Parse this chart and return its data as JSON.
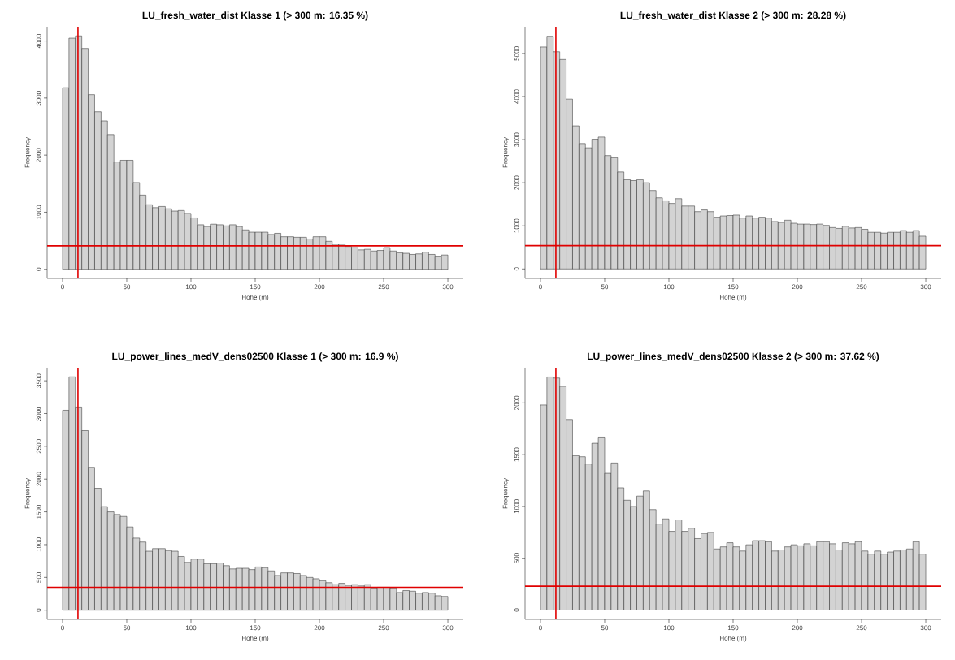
{
  "chart_data": [
    {
      "type": "histogram",
      "title": "LU_fresh_water_dist Klasse 1  (> 300 m: 16.35 %)",
      "xlabel": "Höhe (m)",
      "ylabel": "Frequency",
      "color": "#d3d3d3",
      "bins": [
        0,
        5,
        10,
        15,
        20,
        25,
        30,
        35,
        40,
        45,
        50,
        55,
        60,
        65,
        70,
        75,
        80,
        85,
        90,
        95,
        100,
        105,
        110,
        115,
        120,
        125,
        130,
        135,
        140,
        145,
        150,
        155,
        160,
        165,
        170,
        175,
        180,
        185,
        190,
        195,
        200,
        205,
        210,
        215,
        220,
        225,
        230,
        235,
        240,
        245,
        250,
        255,
        260,
        265,
        270,
        275,
        280,
        285,
        290,
        295,
        300
      ],
      "values": [
        3180,
        4050,
        4090,
        3870,
        3060,
        2760,
        2600,
        2360,
        1880,
        1910,
        1910,
        1520,
        1300,
        1130,
        1080,
        1100,
        1060,
        1020,
        1030,
        980,
        900,
        780,
        750,
        790,
        780,
        760,
        780,
        750,
        690,
        650,
        650,
        650,
        610,
        630,
        570,
        570,
        560,
        560,
        530,
        570,
        570,
        490,
        440,
        440,
        400,
        380,
        340,
        350,
        320,
        330,
        380,
        320,
        290,
        280,
        260,
        270,
        300,
        260,
        230,
        250
      ],
      "xlim": [
        -12,
        312
      ],
      "ylim": [
        -160,
        4250
      ],
      "xticks": [
        0,
        50,
        100,
        150,
        200,
        250,
        300
      ],
      "yticks": [
        0,
        1000,
        2000,
        3000,
        4000
      ],
      "ref_lines": [
        {
          "axis": "x",
          "value": 12,
          "color": "#e00000"
        },
        {
          "axis": "y",
          "value": 410,
          "color": "#e00000"
        }
      ]
    },
    {
      "type": "histogram",
      "title": "LU_fresh_water_dist Klasse 2  (> 300 m: 28.28 %)",
      "xlabel": "Höhe (m)",
      "ylabel": "Frequency",
      "color": "#d3d3d3",
      "bins": [
        0,
        5,
        10,
        15,
        20,
        25,
        30,
        35,
        40,
        45,
        50,
        55,
        60,
        65,
        70,
        75,
        80,
        85,
        90,
        95,
        100,
        105,
        110,
        115,
        120,
        125,
        130,
        135,
        140,
        145,
        150,
        155,
        160,
        165,
        170,
        175,
        180,
        185,
        190,
        195,
        200,
        205,
        210,
        215,
        220,
        225,
        230,
        235,
        240,
        245,
        250,
        255,
        260,
        265,
        270,
        275,
        280,
        285,
        290,
        295,
        300
      ],
      "values": [
        5150,
        5400,
        5040,
        4860,
        3940,
        3320,
        2910,
        2810,
        3010,
        3060,
        2630,
        2580,
        2250,
        2070,
        2050,
        2070,
        2000,
        1820,
        1650,
        1580,
        1520,
        1630,
        1460,
        1460,
        1330,
        1370,
        1330,
        1200,
        1230,
        1240,
        1250,
        1180,
        1230,
        1180,
        1200,
        1180,
        1100,
        1080,
        1130,
        1060,
        1040,
        1040,
        1030,
        1040,
        1010,
        960,
        940,
        990,
        950,
        960,
        920,
        850,
        850,
        830,
        850,
        850,
        890,
        850,
        890,
        760
      ],
      "xlim": [
        -12,
        312
      ],
      "ylim": [
        -220,
        5620
      ],
      "xticks": [
        0,
        50,
        100,
        150,
        200,
        250,
        300
      ],
      "yticks": [
        0,
        1000,
        2000,
        3000,
        4000,
        5000
      ],
      "ref_lines": [
        {
          "axis": "x",
          "value": 12,
          "color": "#e00000"
        },
        {
          "axis": "y",
          "value": 540,
          "color": "#e00000"
        }
      ]
    },
    {
      "type": "histogram",
      "title": "LU_power_lines_medV_dens02500 Klasse 1  (> 300 m: 16.9 %)",
      "xlabel": "Höhe (m)",
      "ylabel": "Frequency",
      "color": "#d3d3d3",
      "bins": [
        0,
        5,
        10,
        15,
        20,
        25,
        30,
        35,
        40,
        45,
        50,
        55,
        60,
        65,
        70,
        75,
        80,
        85,
        90,
        95,
        100,
        105,
        110,
        115,
        120,
        125,
        130,
        135,
        140,
        145,
        150,
        155,
        160,
        165,
        170,
        175,
        180,
        185,
        190,
        195,
        200,
        205,
        210,
        215,
        220,
        225,
        230,
        235,
        240,
        245,
        250,
        255,
        260,
        265,
        270,
        275,
        280,
        285,
        290,
        295,
        300
      ],
      "values": [
        3050,
        3560,
        3100,
        2740,
        2180,
        1860,
        1580,
        1500,
        1460,
        1430,
        1270,
        1100,
        1040,
        900,
        940,
        940,
        910,
        900,
        820,
        730,
        780,
        780,
        710,
        710,
        720,
        680,
        630,
        640,
        640,
        620,
        660,
        650,
        600,
        530,
        570,
        570,
        560,
        530,
        500,
        480,
        450,
        420,
        390,
        410,
        380,
        390,
        370,
        390,
        340,
        350,
        350,
        340,
        270,
        300,
        290,
        260,
        270,
        260,
        220,
        210
      ],
      "xlim": [
        -12,
        312
      ],
      "ylim": [
        -140,
        3700
      ],
      "xticks": [
        0,
        50,
        100,
        150,
        200,
        250,
        300
      ],
      "yticks": [
        0,
        500,
        1000,
        1500,
        2000,
        2500,
        3000,
        3500
      ],
      "ref_lines": [
        {
          "axis": "x",
          "value": 12,
          "color": "#e00000"
        },
        {
          "axis": "y",
          "value": 350,
          "color": "#e00000"
        }
      ]
    },
    {
      "type": "histogram",
      "title": "LU_power_lines_medV_dens02500 Klasse 2  (> 300 m: 37.62 %)",
      "xlabel": "Höhe (m)",
      "ylabel": "Frequency",
      "color": "#d3d3d3",
      "bins": [
        0,
        5,
        10,
        15,
        20,
        25,
        30,
        35,
        40,
        45,
        50,
        55,
        60,
        65,
        70,
        75,
        80,
        85,
        90,
        95,
        100,
        105,
        110,
        115,
        120,
        125,
        130,
        135,
        140,
        145,
        150,
        155,
        160,
        165,
        170,
        175,
        180,
        185,
        190,
        195,
        200,
        205,
        210,
        215,
        220,
        225,
        230,
        235,
        240,
        245,
        250,
        255,
        260,
        265,
        270,
        275,
        280,
        285,
        290,
        295,
        300
      ],
      "values": [
        1980,
        2250,
        2240,
        2160,
        1840,
        1490,
        1480,
        1410,
        1610,
        1670,
        1320,
        1420,
        1180,
        1060,
        1000,
        1100,
        1150,
        970,
        830,
        880,
        760,
        870,
        760,
        790,
        690,
        740,
        750,
        590,
        610,
        650,
        610,
        570,
        630,
        670,
        670,
        660,
        570,
        580,
        610,
        630,
        620,
        640,
        620,
        660,
        660,
        640,
        580,
        650,
        640,
        660,
        570,
        540,
        570,
        540,
        560,
        570,
        580,
        590,
        660,
        540
      ],
      "xlim": [
        -12,
        312
      ],
      "ylim": [
        -90,
        2340
      ],
      "xticks": [
        0,
        50,
        100,
        150,
        200,
        250,
        300
      ],
      "yticks": [
        0,
        500,
        1000,
        1500,
        2000
      ],
      "ref_lines": [
        {
          "axis": "x",
          "value": 12,
          "color": "#e00000"
        },
        {
          "axis": "y",
          "value": 230,
          "color": "#e00000"
        }
      ]
    }
  ]
}
